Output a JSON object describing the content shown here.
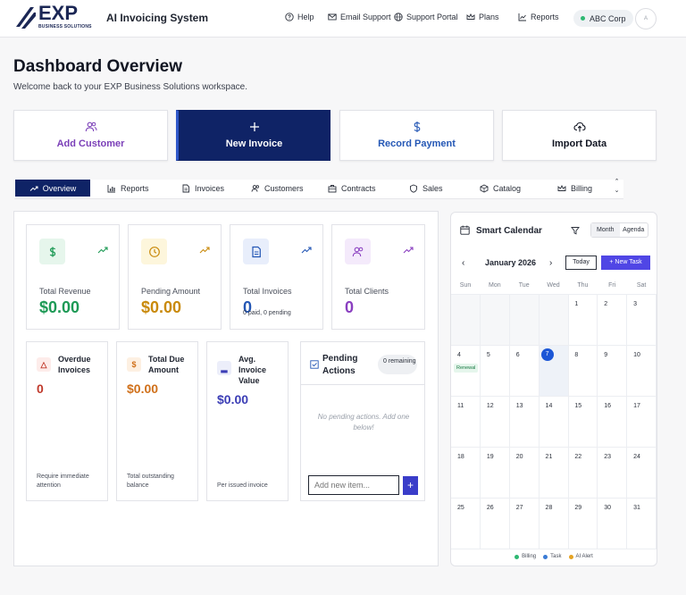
{
  "header": {
    "logo_text": "EXP",
    "logo_sub": "BUSINESS SOLUTIONS",
    "app_title": "AI Invoicing System",
    "links": [
      {
        "label": "Help",
        "icon": "help-circle-icon"
      },
      {
        "label": "Email Support",
        "icon": "mail-icon"
      },
      {
        "label": "Support Portal",
        "icon": "globe-icon"
      },
      {
        "label": "Plans",
        "icon": "crown-icon"
      },
      {
        "label": "Reports",
        "icon": "chart-icon"
      }
    ],
    "org": "ABC Corp",
    "avatar_text": "A"
  },
  "page": {
    "title": "Dashboard Overview",
    "subtitle": "Welcome back to your EXP Business Solutions workspace."
  },
  "actions": [
    {
      "label": "Add Customer",
      "icon": "users-icon",
      "color": "#7b3fb8"
    },
    {
      "label": "New Invoice",
      "icon": "plus-icon",
      "color": "#ffffff"
    },
    {
      "label": "Record Payment",
      "icon": "dollar-icon",
      "color": "#2457b5"
    },
    {
      "label": "Import Data",
      "icon": "cloud-upload-icon",
      "color": "#111522"
    }
  ],
  "tabs": [
    {
      "label": "Overview",
      "icon": "trend-icon"
    },
    {
      "label": "Reports",
      "icon": "bar-chart-icon"
    },
    {
      "label": "Invoices",
      "icon": "file-icon"
    },
    {
      "label": "Customers",
      "icon": "users-icon"
    },
    {
      "label": "Contracts",
      "icon": "building-icon"
    },
    {
      "label": "Sales",
      "icon": "shield-icon"
    },
    {
      "label": "Catalog",
      "icon": "box-icon"
    },
    {
      "label": "Billing",
      "icon": "crown-icon"
    }
  ],
  "stats": [
    {
      "title": "Total Revenue",
      "value": "$0.00",
      "note": "",
      "color": "#1e9a56"
    },
    {
      "title": "Pending Amount",
      "value": "$0.00",
      "note": "",
      "color": "#c98a0c"
    },
    {
      "title": "Total Invoices",
      "value": "0",
      "note": "0 paid, 0 pending",
      "color": "#2457b5"
    },
    {
      "title": "Total Clients",
      "value": "0",
      "note": "",
      "color": "#8a3fc0"
    }
  ],
  "minis": [
    {
      "title": "Overdue Invoices",
      "value": "0",
      "footer": "Require immediate attention",
      "color": "#c0392b"
    },
    {
      "title": "Total Due Amount",
      "value": "$0.00",
      "footer": "Total outstanding balance",
      "color": "#d0701a"
    },
    {
      "title": "Avg. Invoice Value",
      "value": "$0.00",
      "footer": "Per issued invoice",
      "color": "#3b3db5"
    }
  ],
  "pending": {
    "title": "Pending Actions",
    "count_label": "0 remaining",
    "empty_text": "No pending actions. Add one below!",
    "placeholder": "Add new item...",
    "add_label": "+"
  },
  "calendar": {
    "title": "Smart Calendar",
    "views": [
      "Month",
      "Agenda"
    ],
    "active_view": "Month",
    "month": "January 2026",
    "prev": "‹",
    "next": "›",
    "today_label": "Today",
    "new_task_label": "+ New Task",
    "weekdays": [
      "Sun",
      "Mon",
      "Tue",
      "Wed",
      "Thu",
      "Fri",
      "Sat"
    ],
    "today": "7",
    "weeks": [
      [
        "",
        "",
        "",
        "",
        "1",
        "2",
        "3"
      ],
      [
        "4",
        "5",
        "6",
        "7",
        "8",
        "9",
        "10"
      ],
      [
        "11",
        "12",
        "13",
        "14",
        "15",
        "16",
        "17"
      ],
      [
        "18",
        "19",
        "20",
        "21",
        "22",
        "23",
        "24"
      ],
      [
        "25",
        "26",
        "27",
        "28",
        "29",
        "30",
        "31"
      ]
    ],
    "events": [
      {
        "day": "4",
        "label": "Renewal"
      }
    ],
    "legend": [
      {
        "label": "Billing",
        "color": "#2eb872"
      },
      {
        "label": "Task",
        "color": "#3a7bd5"
      },
      {
        "label": "AI Alert",
        "color": "#e5a323"
      }
    ]
  }
}
